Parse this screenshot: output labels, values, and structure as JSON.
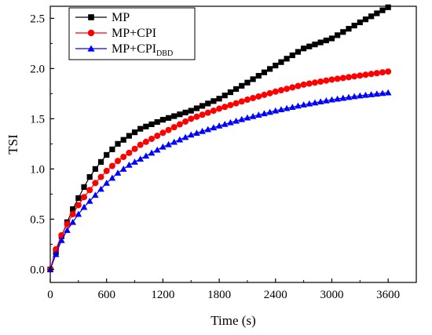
{
  "chart_data": {
    "type": "line",
    "xlabel": "Time (s)",
    "ylabel": "TSI",
    "xlim": [
      0,
      3900
    ],
    "ylim": [
      -0.13,
      2.62
    ],
    "xticks": [
      0,
      600,
      1200,
      1800,
      2400,
      3000,
      3600
    ],
    "yticks": [
      0.0,
      0.5,
      1.0,
      1.5,
      2.0,
      2.5
    ],
    "xtick_labels": [
      "0",
      "600",
      "1200",
      "1800",
      "2400",
      "3000",
      "3600"
    ],
    "ytick_labels": [
      "0.0",
      "0.5",
      "1.0",
      "1.5",
      "2.0",
      "2.5"
    ],
    "grid": false,
    "legend_position": "top-left",
    "x_start": 0,
    "x_step": 60,
    "x_end": 3600,
    "series": [
      {
        "name_main": "MP",
        "name_sub": "",
        "color": "#000000",
        "marker": "square",
        "anchors": [
          [
            0,
            0
          ],
          [
            60,
            0.17
          ],
          [
            120,
            0.33
          ],
          [
            180,
            0.47
          ],
          [
            240,
            0.6
          ],
          [
            300,
            0.71
          ],
          [
            360,
            0.82
          ],
          [
            420,
            0.92
          ],
          [
            480,
            1.0
          ],
          [
            600,
            1.14
          ],
          [
            720,
            1.25
          ],
          [
            840,
            1.33
          ],
          [
            960,
            1.4
          ],
          [
            1200,
            1.49
          ],
          [
            1500,
            1.58
          ],
          [
            1800,
            1.7
          ],
          [
            2100,
            1.86
          ],
          [
            2400,
            2.03
          ],
          [
            2700,
            2.2
          ],
          [
            3000,
            2.3
          ],
          [
            3300,
            2.46
          ],
          [
            3600,
            2.61
          ]
        ]
      },
      {
        "name_main": "MP+CPI",
        "name_sub": "",
        "color": "#ff0000",
        "marker": "circle",
        "anchors": [
          [
            0,
            0
          ],
          [
            60,
            0.2
          ],
          [
            120,
            0.34
          ],
          [
            180,
            0.45
          ],
          [
            240,
            0.55
          ],
          [
            300,
            0.64
          ],
          [
            360,
            0.72
          ],
          [
            420,
            0.79
          ],
          [
            480,
            0.86
          ],
          [
            600,
            0.98
          ],
          [
            720,
            1.08
          ],
          [
            840,
            1.16
          ],
          [
            960,
            1.24
          ],
          [
            1200,
            1.36
          ],
          [
            1500,
            1.5
          ],
          [
            1800,
            1.6
          ],
          [
            2100,
            1.69
          ],
          [
            2400,
            1.77
          ],
          [
            2700,
            1.84
          ],
          [
            3000,
            1.89
          ],
          [
            3300,
            1.93
          ],
          [
            3600,
            1.97
          ]
        ]
      },
      {
        "name_main": "MP+CPI",
        "name_sub": "DBD",
        "color": "#0000ff",
        "marker": "triangle",
        "anchors": [
          [
            0,
            0
          ],
          [
            60,
            0.15
          ],
          [
            120,
            0.29
          ],
          [
            180,
            0.39
          ],
          [
            240,
            0.47
          ],
          [
            300,
            0.55
          ],
          [
            360,
            0.62
          ],
          [
            420,
            0.68
          ],
          [
            480,
            0.74
          ],
          [
            600,
            0.86
          ],
          [
            720,
            0.96
          ],
          [
            840,
            1.04
          ],
          [
            960,
            1.1
          ],
          [
            1200,
            1.22
          ],
          [
            1500,
            1.34
          ],
          [
            1800,
            1.43
          ],
          [
            2100,
            1.51
          ],
          [
            2400,
            1.58
          ],
          [
            2700,
            1.64
          ],
          [
            3000,
            1.69
          ],
          [
            3300,
            1.73
          ],
          [
            3600,
            1.76
          ]
        ]
      }
    ]
  }
}
